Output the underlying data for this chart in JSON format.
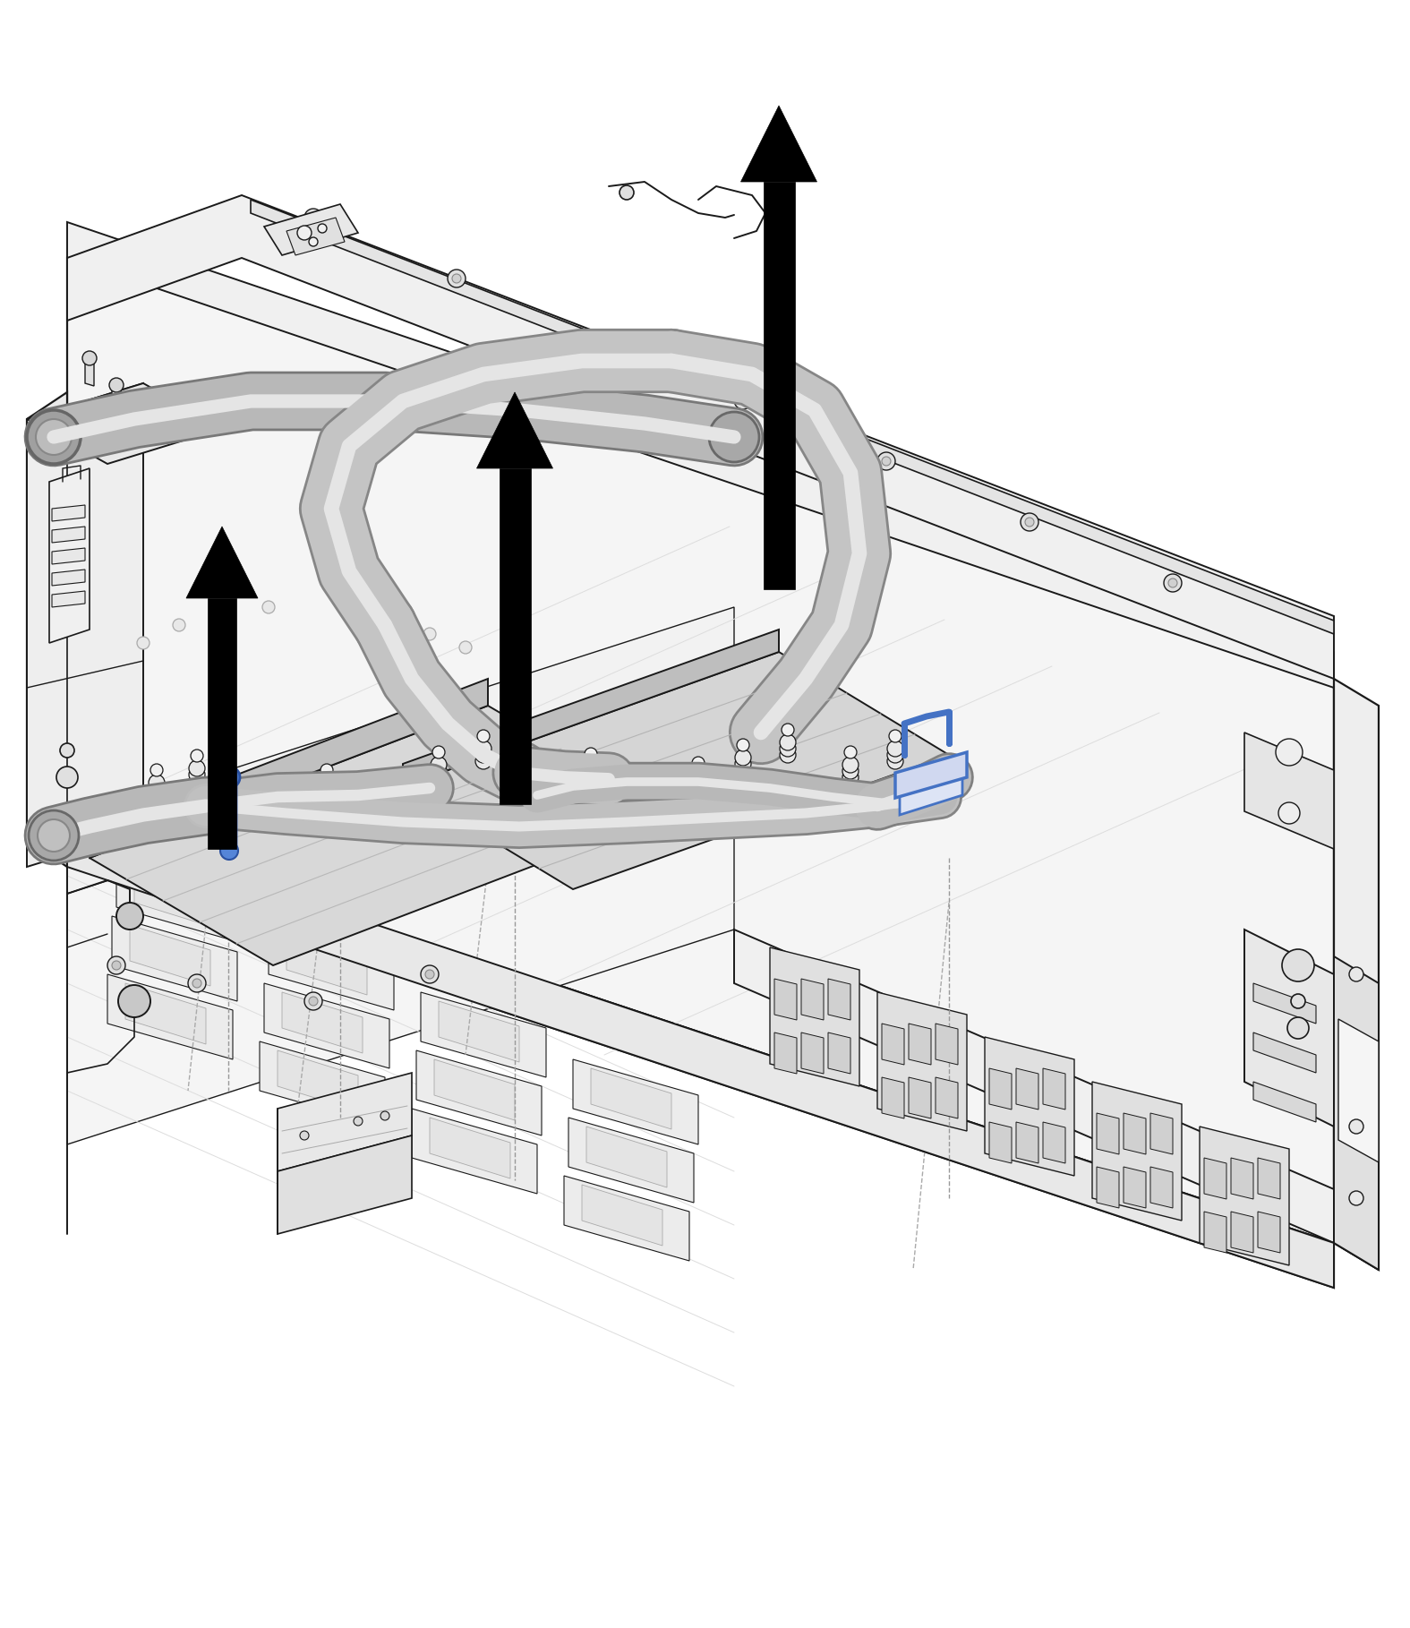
{
  "background_color": "#ffffff",
  "figsize": [
    15.75,
    18.18
  ],
  "dpi": 100,
  "line_color": "#1a1a1a",
  "gray_fill": "#d8d8d8",
  "light_fill": "#eeeeee",
  "mid_fill": "#c8c8c8",
  "dark_fill": "#aaaaaa",
  "blue_color": "#4472c4",
  "tube_color": "#c0c0c0",
  "tube_edge": "#888888",
  "arrow_color": "#000000"
}
